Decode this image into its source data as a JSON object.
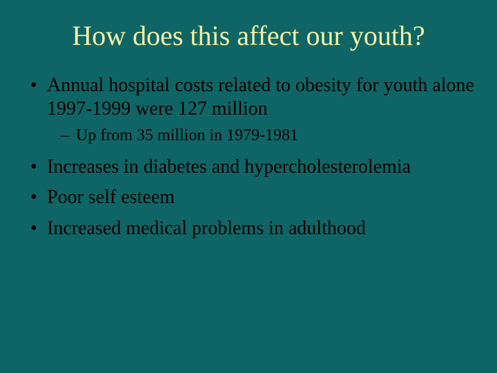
{
  "slide": {
    "background_color": "#0f6565",
    "title": {
      "text": "How does this affect our youth?",
      "color": "#f5f3a6",
      "font_size_pt": 40,
      "font_family": "Times New Roman"
    },
    "body": {
      "text_color": "#000000",
      "font_family": "Times New Roman",
      "level1_font_size_pt": 28,
      "level2_font_size_pt": 24,
      "bullets": [
        {
          "text": "Annual hospital costs related to obesity for youth alone 1997-1999 were 127 million",
          "sub": [
            {
              "text": "Up from 35 million in 1979-1981"
            }
          ]
        },
        {
          "text": "Increases in diabetes and hypercholesterolemia"
        },
        {
          "text": "Poor self esteem"
        },
        {
          "text": "Increased medical problems in adulthood"
        }
      ]
    }
  }
}
